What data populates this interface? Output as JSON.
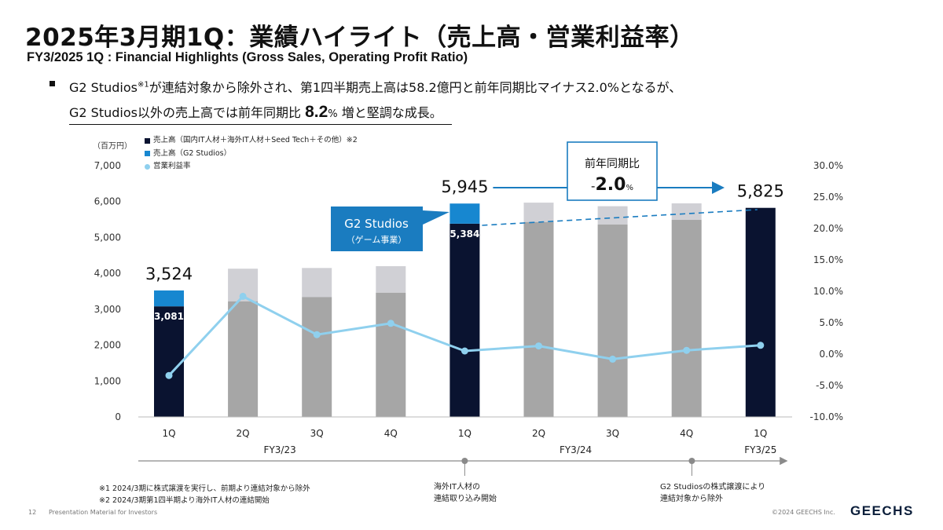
{
  "page": {
    "title": "2025年3月期1Q：業績ハイライト（売上高・営業利益率）",
    "subtitle": "FY3/2025 1Q : Financial Highlights (Gross Sales, Operating Profit Ratio)",
    "bullet_line1_pre": "G2 Studios",
    "bullet_line1_sup": "※1",
    "bullet_line1_post": "が連結対象から除外され、第1四半期売上高は58.2億円と前年同期比マイナス2.0%となるが、",
    "bullet_line2_pre": "G2 Studios以外の売上高では前年同期比 ",
    "bullet_line2_num": "8.2",
    "bullet_line2_pct": "%",
    "bullet_line2_post": " 増と堅調な成長。",
    "unit_label": "（百万円）",
    "notes": [
      "※1 2024/3期に株式譲渡を実行し、前期より連結対象から除外",
      "※2 2024/3期第1四半期より海外IT人材の連結開始"
    ],
    "timeline_annotations": [
      [
        "海外IT人材の",
        "連結取り込み開始"
      ],
      [
        "G2 Studiosの株式譲渡により",
        "連結対象から除外"
      ]
    ],
    "footer": {
      "page_number": "12",
      "text": "Presentation Material for  Investors",
      "copyright": "©2024 GEECHS Inc.",
      "logo": "GEECHS"
    },
    "colors": {
      "navy": "#0a1330",
      "blue": "#1787d0",
      "gray": "#a6a6a6",
      "light_gray": "#d0d0d5",
      "light_blue": "#8fd0ee",
      "accent": "#1a7cc0"
    }
  },
  "chart_data": {
    "type": "bar",
    "categories": [
      "1Q",
      "2Q",
      "3Q",
      "4Q",
      "1Q",
      "2Q",
      "3Q",
      "4Q",
      "1Q"
    ],
    "fiscal_years": [
      {
        "label": "FY3/23",
        "start": 0,
        "end": 3
      },
      {
        "label": "FY3/24",
        "start": 4,
        "end": 7
      },
      {
        "label": "FY3/25",
        "start": 8,
        "end": 8
      }
    ],
    "series": [
      {
        "name": "売上高（国内IT人材＋海外IT人材＋Seed Tech＋その他）※2",
        "axis": "left",
        "values": [
          3081,
          null,
          null,
          null,
          5384,
          null,
          null,
          null,
          5825
        ]
      },
      {
        "name": "売上高（G2 Studios）",
        "axis": "left",
        "values": [
          443,
          null,
          null,
          null,
          561,
          null,
          null,
          null,
          0
        ]
      },
      {
        "name": "営業利益率",
        "axis": "right",
        "type": "line",
        "values": [
          -3.4,
          9.2,
          3.1,
          4.9,
          0.5,
          1.3,
          -0.8,
          0.6,
          1.4
        ]
      }
    ],
    "background_bars": {
      "base": [
        null,
        3220,
        3340,
        3460,
        null,
        5430,
        5360,
        5490,
        null
      ],
      "top": [
        null,
        4130,
        4150,
        4200,
        null,
        5970,
        5870,
        5950,
        null
      ]
    },
    "data_labels": {
      "inside": [
        {
          "index": 0,
          "text": "3,081"
        },
        {
          "index": 4,
          "text": "5,384"
        }
      ],
      "totals": [
        {
          "index": 0,
          "text": "3,524"
        },
        {
          "index": 4,
          "text": "5,945"
        },
        {
          "index": 8,
          "text": "5,825"
        }
      ]
    },
    "y_left": {
      "ticks": [
        "0",
        "1,000",
        "2,000",
        "3,000",
        "4,000",
        "5,000",
        "6,000",
        "7,000"
      ],
      "min": 0,
      "max": 7000
    },
    "y_right": {
      "ticks": [
        "-10.0%",
        "-5.0%",
        "0.0%",
        "5.0%",
        "10.0%",
        "15.0%",
        "20.0%",
        "25.0%",
        "30.0%"
      ],
      "min": -10,
      "max": 30
    },
    "callout_g2": {
      "line1": "G2 Studios",
      "line2": "（ゲーム事業）"
    },
    "callout_yoy": {
      "line1": "前年同期比",
      "sign": "-",
      "num": "2.0",
      "pct": "%"
    },
    "legend_position": "top-left",
    "grid": false
  }
}
